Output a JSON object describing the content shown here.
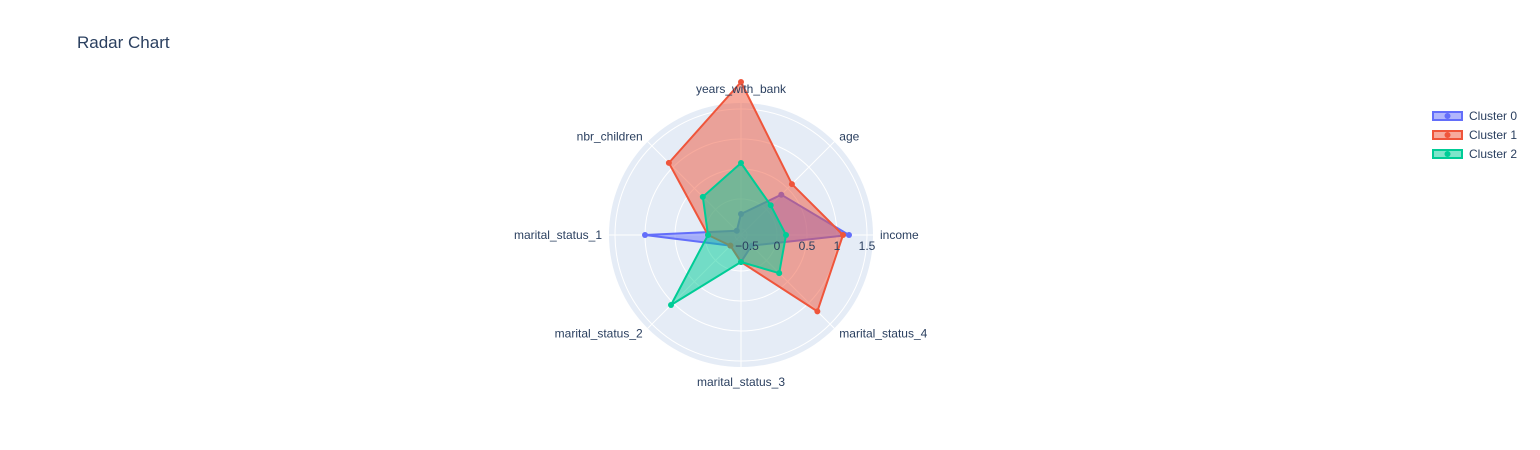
{
  "title": "Radar Chart",
  "chart_data": {
    "type": "radar",
    "title": "Radar Chart",
    "axes": [
      "income",
      "age",
      "years_with_bank",
      "nbr_children",
      "marital_status_1",
      "marital_status_2",
      "marital_status_3",
      "marital_status_4"
    ],
    "radial_ticks": [
      "−0.5",
      "0",
      "0.5",
      "1",
      "1.5"
    ],
    "radial_tick_values": [
      -0.5,
      0,
      0.5,
      1,
      1.5
    ],
    "radial_range": [
      -0.6,
      1.6
    ],
    "legend_position": "top-right",
    "grid": true,
    "series": [
      {
        "name": "Cluster 0",
        "color": "#636efa",
        "values": [
          1.2,
          0.35,
          -0.25,
          -0.5,
          1.0,
          -0.35,
          -0.15,
          -0.35
        ]
      },
      {
        "name": "Cluster 1",
        "color": "#ef553b",
        "values": [
          1.1,
          0.6,
          1.95,
          1.1,
          -0.05,
          -0.35,
          -0.15,
          1.2
        ]
      },
      {
        "name": "Cluster 2",
        "color": "#00cc96",
        "values": [
          0.15,
          0.1,
          0.6,
          0.3,
          -0.05,
          1.05,
          -0.15,
          0.3
        ]
      }
    ]
  }
}
